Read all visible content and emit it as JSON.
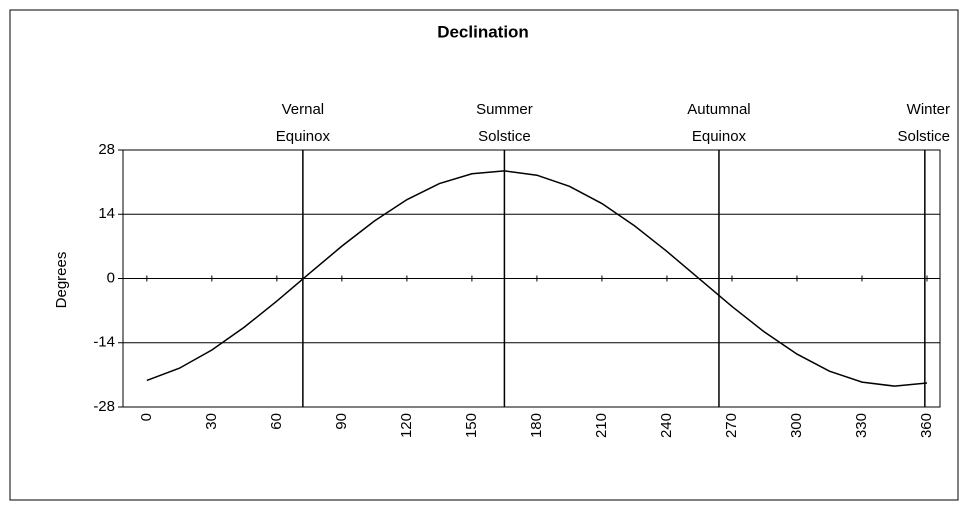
{
  "chart_data": {
    "type": "line",
    "title": "Declination",
    "y_label": "Degrees",
    "x": [
      0,
      15,
      30,
      45,
      60,
      75,
      90,
      105,
      120,
      135,
      150,
      165,
      180,
      195,
      210,
      225,
      240,
      255,
      270,
      285,
      300,
      315,
      330,
      345,
      360
    ],
    "series": [
      {
        "name": "Declination",
        "color": "#000000",
        "values": [
          -22.21,
          -19.55,
          -15.59,
          -10.6,
          -4.91,
          1.11,
          7.05,
          12.53,
          17.18,
          20.68,
          22.82,
          23.44,
          22.51,
          20.08,
          16.33,
          11.49,
          5.89,
          -0.1,
          -6.09,
          -11.67,
          -16.47,
          -20.19,
          -22.57,
          -23.45,
          -22.77
        ]
      }
    ],
    "xlim": [
      -11,
      366
    ],
    "xticks": [
      0,
      30,
      60,
      90,
      120,
      150,
      180,
      210,
      240,
      270,
      300,
      330,
      360
    ],
    "ylim": [
      -28,
      28
    ],
    "yticks": [
      -28,
      -14,
      0,
      14,
      28
    ],
    "grid": true,
    "annotations": [
      {
        "x": 72,
        "label": [
          "Vernal",
          "Equinox"
        ]
      },
      {
        "x": 165,
        "label": [
          "Summer",
          "Solstice"
        ]
      },
      {
        "x": 264,
        "label": [
          "Autumnal",
          "Equinox"
        ]
      },
      {
        "x": 359,
        "label": [
          "Winter",
          "Solstice"
        ]
      }
    ]
  }
}
